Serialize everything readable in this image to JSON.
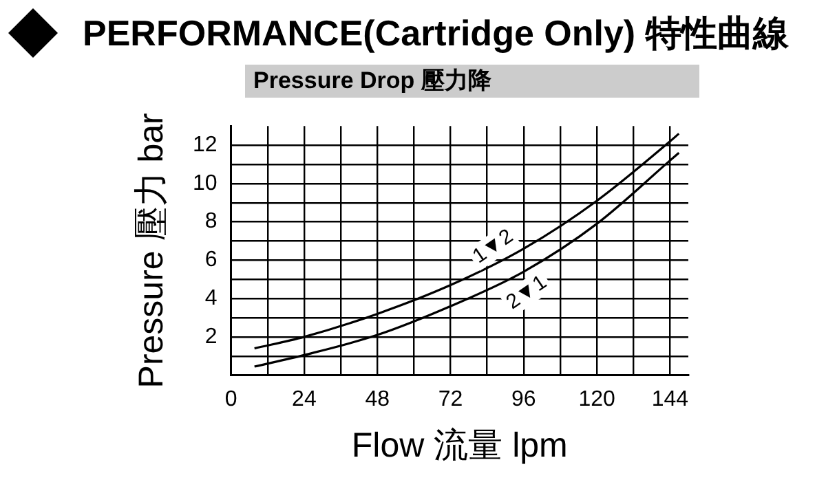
{
  "chart_data": {
    "type": "line",
    "title": "PERFORMANCE(Cartridge Only) 特性曲線",
    "subtitle": "Pressure Drop 壓力降",
    "xlabel": "Flow 流量 lpm",
    "ylabel": "Pressure 壓力 bar",
    "xlim": [
      0,
      150
    ],
    "ylim": [
      0,
      13
    ],
    "xticks": [
      0,
      {
        "value": 12,
        "label": null
      },
      24,
      {
        "value": 36,
        "label": null
      },
      48,
      {
        "value": 60,
        "label": null
      },
      72,
      {
        "value": 84,
        "label": null
      },
      96,
      {
        "value": 108,
        "label": null
      },
      120,
      {
        "value": 132,
        "label": null
      },
      144
    ],
    "yticks": [
      {
        "value": 1,
        "label": null
      },
      2,
      {
        "value": 3,
        "label": null
      },
      4,
      {
        "value": 5,
        "label": null
      },
      6,
      {
        "value": 7,
        "label": null
      },
      8,
      {
        "value": 9,
        "label": null
      },
      10,
      {
        "value": 11,
        "label": null
      },
      12
    ],
    "grid": true,
    "legend": false,
    "marker": "none",
    "line_style": "solid",
    "series": [
      {
        "color": "#000000",
        "x": [
          7.7,
          24,
          48,
          72,
          96,
          120,
          144,
          146.9
        ],
        "values": [
          1.4,
          2.0,
          3.2,
          4.7,
          6.6,
          9.1,
          12.2,
          12.6
        ]
      },
      {
        "color": "#000000",
        "x": [
          7.7,
          24,
          48,
          72,
          96,
          120,
          144,
          146.9
        ],
        "values": [
          0.45,
          1.05,
          2.1,
          3.6,
          5.4,
          7.9,
          11.2,
          11.6
        ]
      }
    ],
    "annotations": [
      {
        "text": "1▼2",
        "x": 86,
        "y": 6.7
      },
      {
        "text": "2▼1",
        "x": 97,
        "y": 4.3
      }
    ]
  }
}
